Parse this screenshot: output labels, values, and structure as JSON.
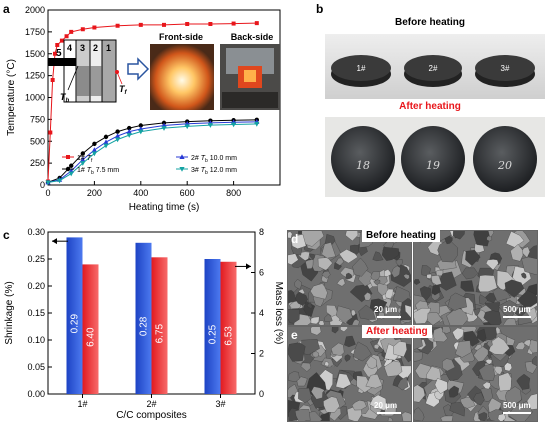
{
  "panels": {
    "a": "a",
    "b": "b",
    "c": "c",
    "d": "d",
    "e": "e"
  },
  "chart_a": {
    "type": "line",
    "xlabel": "Heating  time (s)",
    "ylabel": "Temperature (°C)",
    "xlim": [
      0,
      1000
    ],
    "ylim": [
      0,
      2000
    ],
    "xticks": [
      0,
      200,
      400,
      600,
      800
    ],
    "yticks": [
      0,
      250,
      500,
      750,
      1000,
      1250,
      1500,
      1750,
      2000
    ],
    "inset": {
      "front": "Front-side",
      "back": "Back-side",
      "numbers": [
        "5",
        "4",
        "3",
        "2",
        "1"
      ],
      "tb": "T",
      "tb_sub": "b",
      "tf": "T",
      "tf_sub": "f"
    },
    "series": [
      {
        "name": "1# T",
        "sub": "f",
        "extra": "",
        "color": "#e8161b",
        "marker": "square",
        "points": [
          [
            0,
            40
          ],
          [
            10,
            600
          ],
          [
            20,
            1200
          ],
          [
            30,
            1500
          ],
          [
            40,
            1600
          ],
          [
            60,
            1650
          ],
          [
            80,
            1700
          ],
          [
            100,
            1750
          ],
          [
            150,
            1780
          ],
          [
            200,
            1800
          ],
          [
            300,
            1820
          ],
          [
            400,
            1830
          ],
          [
            500,
            1830
          ],
          [
            600,
            1840
          ],
          [
            700,
            1840
          ],
          [
            800,
            1845
          ],
          [
            900,
            1850
          ]
        ]
      },
      {
        "name": "1# T",
        "sub": "b",
        "extra": " 7.5 mm",
        "color": "#000000",
        "marker": "circle",
        "points": [
          [
            0,
            30
          ],
          [
            50,
            80
          ],
          [
            100,
            220
          ],
          [
            150,
            360
          ],
          [
            200,
            470
          ],
          [
            250,
            550
          ],
          [
            300,
            610
          ],
          [
            350,
            650
          ],
          [
            400,
            680
          ],
          [
            500,
            710
          ],
          [
            600,
            725
          ],
          [
            700,
            735
          ],
          [
            800,
            740
          ],
          [
            900,
            745
          ]
        ]
      },
      {
        "name": "2# T",
        "sub": "b",
        "extra": " 10.0 mm",
        "color": "#2a3bd6",
        "marker": "triangle",
        "points": [
          [
            0,
            30
          ],
          [
            50,
            60
          ],
          [
            100,
            160
          ],
          [
            150,
            290
          ],
          [
            200,
            400
          ],
          [
            250,
            490
          ],
          [
            300,
            560
          ],
          [
            350,
            610
          ],
          [
            400,
            640
          ],
          [
            500,
            680
          ],
          [
            600,
            700
          ],
          [
            700,
            710
          ],
          [
            800,
            718
          ],
          [
            900,
            722
          ]
        ]
      },
      {
        "name": "3# T",
        "sub": "b",
        "extra": " 12.0 mm",
        "color": "#14a3a3",
        "marker": "triangle-down",
        "points": [
          [
            0,
            30
          ],
          [
            50,
            50
          ],
          [
            100,
            130
          ],
          [
            150,
            250
          ],
          [
            200,
            360
          ],
          [
            250,
            450
          ],
          [
            300,
            520
          ],
          [
            350,
            570
          ],
          [
            400,
            610
          ],
          [
            500,
            650
          ],
          [
            600,
            670
          ],
          [
            700,
            685
          ],
          [
            800,
            692
          ],
          [
            900,
            698
          ]
        ]
      }
    ]
  },
  "photos_b": {
    "before_title": "Before heating",
    "after_title": "After heating",
    "discs": [
      "1#",
      "2#",
      "3#"
    ],
    "marks": [
      "18",
      "19",
      "20"
    ]
  },
  "chart_c": {
    "type": "bar",
    "categories": [
      "1#",
      "2#",
      "3#"
    ],
    "xlabel": "C/C composites",
    "ylabel_left": "Shrinkage (%)",
    "ylabel_right": "Mass loss (%)",
    "ylim_left": [
      0.0,
      0.3
    ],
    "ylim_right": [
      0,
      8
    ],
    "yticks_left": [
      "0.00",
      "0.05",
      "0.10",
      "0.15",
      "0.20",
      "0.25",
      "0.30"
    ],
    "yticks_right": [
      "0",
      "2",
      "4",
      "6",
      "8"
    ],
    "shrinkage": [
      0.29,
      0.28,
      0.25
    ],
    "shrinkage_labels": [
      "0.29",
      "0.28",
      "0.25"
    ],
    "mass_loss": [
      6.4,
      6.75,
      6.53
    ],
    "mass_loss_labels": [
      "6.40",
      "6.75",
      "6.53"
    ],
    "colors": {
      "shrinkage": "#2a55d6",
      "mass_loss": "#e8161b"
    }
  },
  "sem": {
    "before": "Before heating",
    "after": "After heating",
    "scale_small": "20 μm",
    "scale_large": "500 μm"
  }
}
